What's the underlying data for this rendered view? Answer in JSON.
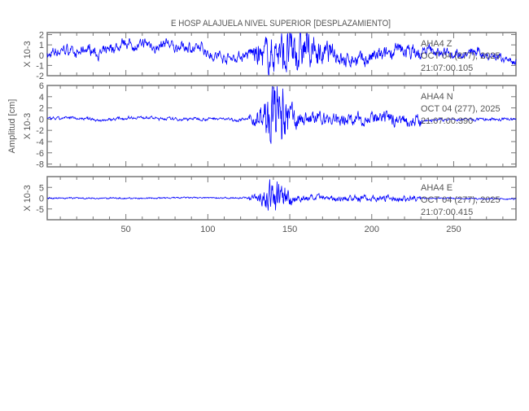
{
  "chart_data": {
    "type": "line",
    "title": "E HOSP ALAJUELA NIVEL SUPERIOR [DESPLAZAMIENTO]",
    "ylabel": "Amplitud [cm]",
    "xlim": [
      2,
      288
    ],
    "x_ticks": [
      50,
      100,
      150,
      200,
      250
    ],
    "grid": false,
    "line_color": "#0000ff",
    "axis_color": "#777777",
    "panels": [
      {
        "station": "AHA4",
        "component": "Z",
        "date": "OCT 04 (277), 2025",
        "time": "21:07:00.105",
        "scale_label": "X 10-3",
        "ylim": [
          -2,
          2.2
        ],
        "y_ticks": [
          2,
          1,
          0,
          -1,
          -2
        ]
      },
      {
        "station": "AHA4",
        "component": "N",
        "date": "OCT 04 (277), 2025",
        "time": "21:07:00.390",
        "scale_label": "X 10-3",
        "ylim": [
          -8.5,
          6
        ],
        "y_ticks": [
          6,
          4,
          2,
          0,
          -2,
          -4,
          -6,
          -8
        ]
      },
      {
        "station": "AHA4",
        "component": "E",
        "date": "OCT 04 (277), 2025",
        "time": "21:07:00.415",
        "scale_label": "X 10-3",
        "ylim": [
          -10,
          10
        ],
        "y_ticks": [
          5,
          0,
          -5
        ]
      }
    ]
  }
}
